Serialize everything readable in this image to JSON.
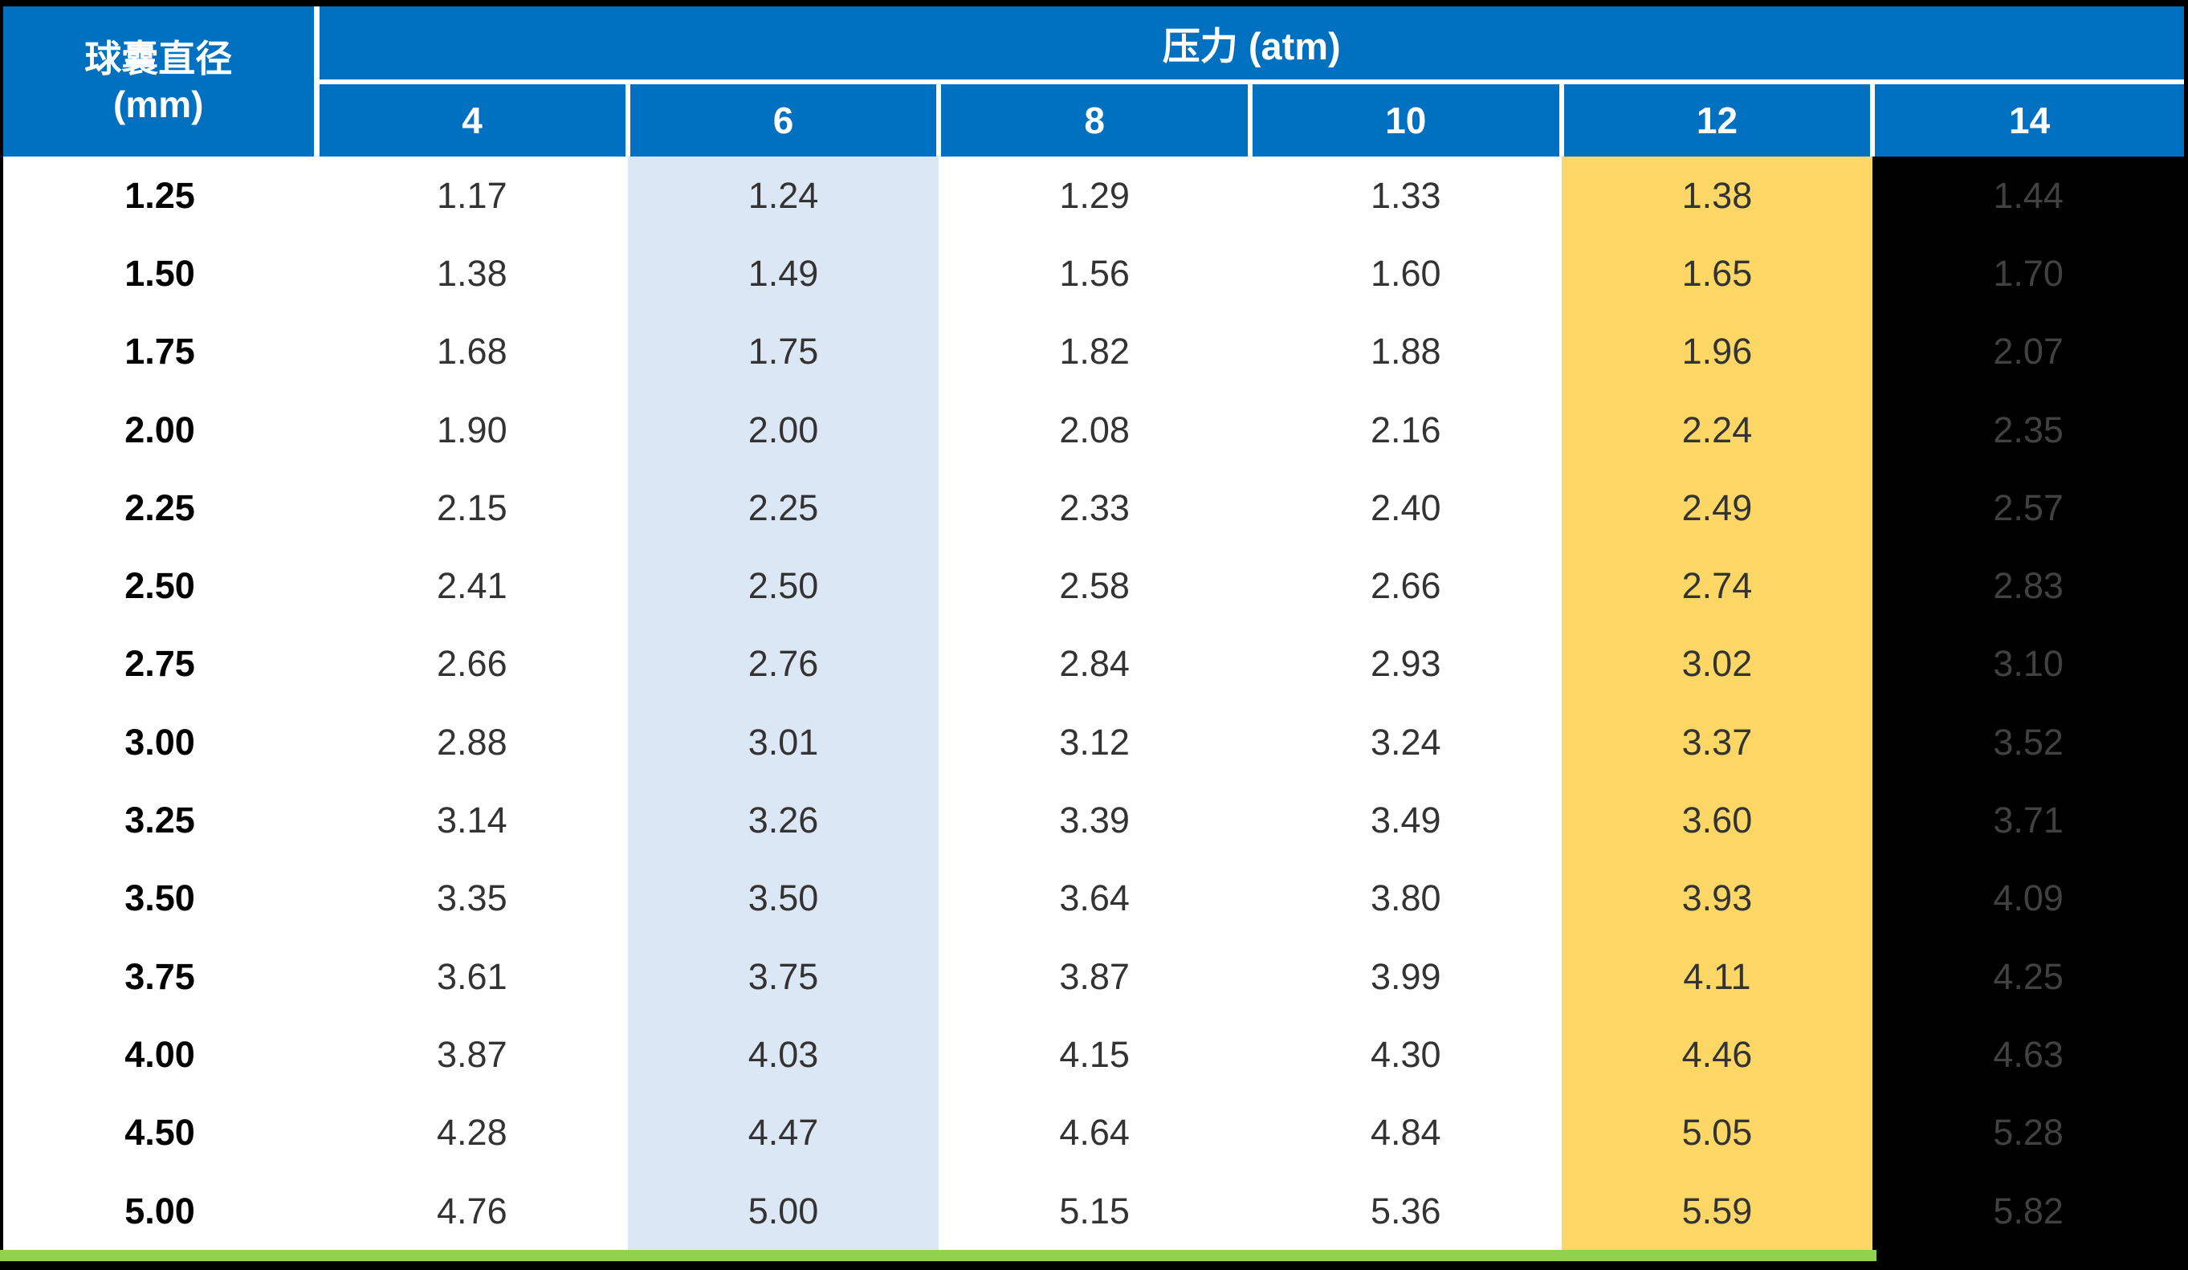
{
  "table": {
    "row_header_title": "球囊直径",
    "row_header_unit": "(mm)",
    "col_group_title": "压力 (atm)",
    "pressure_columns": [
      "4",
      "6",
      "8",
      "10",
      "12",
      "14"
    ],
    "rows": [
      {
        "diameter": "1.25",
        "values": [
          "1.17",
          "1.24",
          "1.29",
          "1.33",
          "1.38",
          "1.44"
        ]
      },
      {
        "diameter": "1.50",
        "values": [
          "1.38",
          "1.49",
          "1.56",
          "1.60",
          "1.65",
          "1.70"
        ]
      },
      {
        "diameter": "1.75",
        "values": [
          "1.68",
          "1.75",
          "1.82",
          "1.88",
          "1.96",
          "2.07"
        ]
      },
      {
        "diameter": "2.00",
        "values": [
          "1.90",
          "2.00",
          "2.08",
          "2.16",
          "2.24",
          "2.35"
        ]
      },
      {
        "diameter": "2.25",
        "values": [
          "2.15",
          "2.25",
          "2.33",
          "2.40",
          "2.49",
          "2.57"
        ]
      },
      {
        "diameter": "2.50",
        "values": [
          "2.41",
          "2.50",
          "2.58",
          "2.66",
          "2.74",
          "2.83"
        ]
      },
      {
        "diameter": "2.75",
        "values": [
          "2.66",
          "2.76",
          "2.84",
          "2.93",
          "3.02",
          "3.10"
        ]
      },
      {
        "diameter": "3.00",
        "values": [
          "2.88",
          "3.01",
          "3.12",
          "3.24",
          "3.37",
          "3.52"
        ]
      },
      {
        "diameter": "3.25",
        "values": [
          "3.14",
          "3.26",
          "3.39",
          "3.49",
          "3.60",
          "3.71"
        ]
      },
      {
        "diameter": "3.50",
        "values": [
          "3.35",
          "3.50",
          "3.64",
          "3.80",
          "3.93",
          "4.09"
        ]
      },
      {
        "diameter": "3.75",
        "values": [
          "3.61",
          "3.75",
          "3.87",
          "3.99",
          "4.11",
          "4.25"
        ]
      },
      {
        "diameter": "4.00",
        "values": [
          "3.87",
          "4.03",
          "4.15",
          "4.30",
          "4.46",
          "4.63"
        ]
      },
      {
        "diameter": "4.50",
        "values": [
          "4.28",
          "4.47",
          "4.64",
          "4.84",
          "5.05",
          "5.28"
        ]
      },
      {
        "diameter": "5.00",
        "values": [
          "4.76",
          "5.00",
          "5.15",
          "5.36",
          "5.59",
          "5.82"
        ]
      }
    ]
  },
  "colors": {
    "header_blue": "#0070C0",
    "column_6_highlight": "#DCE7F5",
    "column_12_highlight": "#FDD765",
    "column_14_highlight": "#000000",
    "bottom_accent_green": "#92D050",
    "value_text": "#333333",
    "column_14_text": "#414141"
  },
  "chart_data": {
    "type": "table",
    "title": "压力 (atm)",
    "row_header": "球囊直径 (mm)",
    "columns_atm": [
      4,
      6,
      8,
      10,
      12,
      14
    ],
    "diameters_mm": [
      1.25,
      1.5,
      1.75,
      2.0,
      2.25,
      2.5,
      2.75,
      3.0,
      3.25,
      3.5,
      3.75,
      4.0,
      4.5,
      5.0
    ],
    "values": [
      [
        1.17,
        1.24,
        1.29,
        1.33,
        1.38,
        1.44
      ],
      [
        1.38,
        1.49,
        1.56,
        1.6,
        1.65,
        1.7
      ],
      [
        1.68,
        1.75,
        1.82,
        1.88,
        1.96,
        2.07
      ],
      [
        1.9,
        2.0,
        2.08,
        2.16,
        2.24,
        2.35
      ],
      [
        2.15,
        2.25,
        2.33,
        2.4,
        2.49,
        2.57
      ],
      [
        2.41,
        2.5,
        2.58,
        2.66,
        2.74,
        2.83
      ],
      [
        2.66,
        2.76,
        2.84,
        2.93,
        3.02,
        3.1
      ],
      [
        2.88,
        3.01,
        3.12,
        3.24,
        3.37,
        3.52
      ],
      [
        3.14,
        3.26,
        3.39,
        3.49,
        3.6,
        3.71
      ],
      [
        3.35,
        3.5,
        3.64,
        3.8,
        3.93,
        4.09
      ],
      [
        3.61,
        3.75,
        3.87,
        3.99,
        4.11,
        4.25
      ],
      [
        3.87,
        4.03,
        4.15,
        4.3,
        4.46,
        4.63
      ],
      [
        4.28,
        4.47,
        4.64,
        4.84,
        5.05,
        5.28
      ],
      [
        4.76,
        5.0,
        5.15,
        5.36,
        5.59,
        5.82
      ]
    ],
    "highlighted_columns_atm": {
      "6": "#DCE7F5",
      "12": "#FDD765",
      "14": "#000000"
    },
    "grid": false,
    "legend": false
  }
}
